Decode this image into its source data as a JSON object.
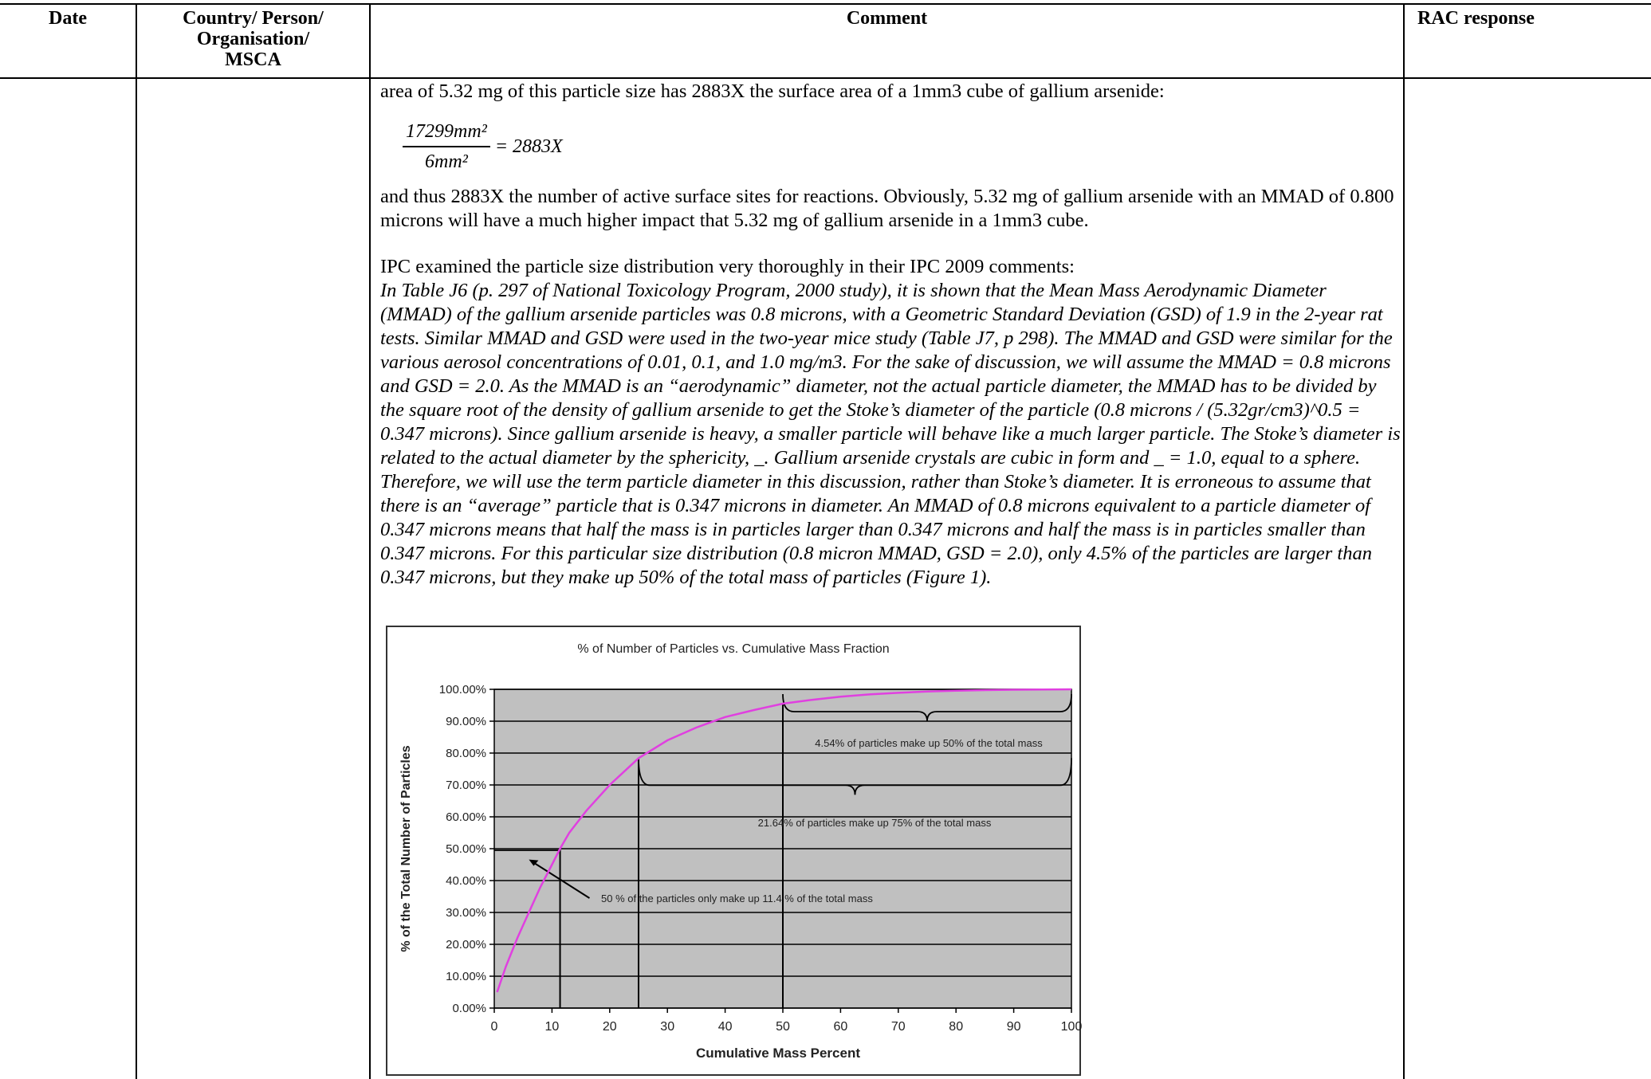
{
  "header": {
    "date": "Date",
    "country_person": [
      "Country/ Person/",
      "Organisation/",
      "MSCA"
    ],
    "comment": "Comment",
    "rac_response": "RAC response"
  },
  "comment_body": {
    "line1": "area of 5.32 mg of this particle size has 2883X the surface area of a 1mm3 cube of gallium arsenide:",
    "equation": {
      "numerator": "17299mm²",
      "denominator": "6mm²",
      "result": "= 2883X"
    },
    "para2": "and thus 2883X the number of active surface sites for reactions. Obviously, 5.32 mg of gallium arsenide with an MMAD of 0.800 microns will have a much higher impact that 5.32 mg of gallium arsenide in a 1mm3 cube.",
    "para3_intro": "IPC examined the particle size distribution very thoroughly in their IPC 2009 comments:",
    "para3_quote": "In Table J6 (p. 297 of National Toxicology Program, 2000 study), it is shown that the Mean Mass Aerodynamic Diameter (MMAD) of the gallium arsenide particles was 0.8 microns, with a Geometric Standard Deviation (GSD) of 1.9 in the 2-year rat tests. Similar MMAD and GSD were used in the two-year mice study (Table J7, p 298). The MMAD and GSD were similar for the various aerosol concentrations of 0.01, 0.1, and 1.0 mg/m3. For the sake of discussion, we will assume the MMAD = 0.8 microns and GSD = 2.0. As the MMAD is an “aerodynamic” diameter, not the actual particle diameter, the MMAD has to be divided by the square root of the density of gallium arsenide to get the Stoke’s diameter of the particle (0.8 microns / (5.32gr/cm3)^0.5 = 0.347 microns). Since gallium arsenide is heavy, a smaller particle will behave like a much larger particle. The Stoke’s diameter is related to the actual diameter by the sphericity, _. Gallium arsenide crystals are cubic in form and _ = 1.0, equal to a sphere. Therefore, we will use the term particle diameter in this discussion, rather than Stoke’s diameter. It is erroneous to assume that there is an “average” particle that is 0.347 microns in diameter. An MMAD of 0.8 microns equivalent to a particle diameter of 0.347 microns means that half the mass is in particles larger than 0.347 microns and half the mass is in particles smaller than 0.347 microns. For this particular size distribution (0.8 micron MMAD, GSD = 2.0), only 4.5% of the particles are larger than 0.347 microns, but they make up 50% of the total mass of particles (Figure 1)."
  },
  "chart_data": {
    "type": "line",
    "title": "% of Number of Particles vs. Cumulative Mass Fraction",
    "xlabel": "Cumulative Mass Percent",
    "ylabel": "% of the Total Number of Particles",
    "xlim": [
      0,
      100
    ],
    "ylim": [
      0,
      100
    ],
    "x_ticks": [
      "0",
      "10",
      "20",
      "30",
      "40",
      "50",
      "60",
      "70",
      "80",
      "90",
      "100"
    ],
    "y_ticks": [
      "0.00%",
      "10.00%",
      "20.00%",
      "30.00%",
      "40.00%",
      "50.00%",
      "60.00%",
      "70.00%",
      "80.00%",
      "90.00%",
      "100.00%"
    ],
    "grid": true,
    "plot_background": "#c0c0c0",
    "series": [
      {
        "color": "#e040e0",
        "x": [
          0.5,
          2,
          4,
          6,
          8,
          10,
          11.4,
          13,
          16,
          20,
          25,
          30,
          35,
          40,
          45,
          50,
          55,
          60,
          65,
          70,
          75,
          80,
          85,
          90,
          95,
          100
        ],
        "y": [
          5,
          13,
          22,
          30,
          38,
          45,
          50,
          55,
          62,
          70,
          78.4,
          84,
          88,
          91.3,
          93.5,
          95.5,
          96.7,
          97.7,
          98.4,
          98.9,
          99.3,
          99.55,
          99.75,
          99.88,
          99.95,
          100
        ]
      }
    ],
    "reference_lines_x": [
      11.4,
      25,
      50
    ],
    "annotations": [
      "4.54% of particles make up 50% of the total mass",
      "21.64% of particles make up 75% of the total mass",
      "50 % of the particles only make up 11.4 % of the total mass"
    ]
  }
}
